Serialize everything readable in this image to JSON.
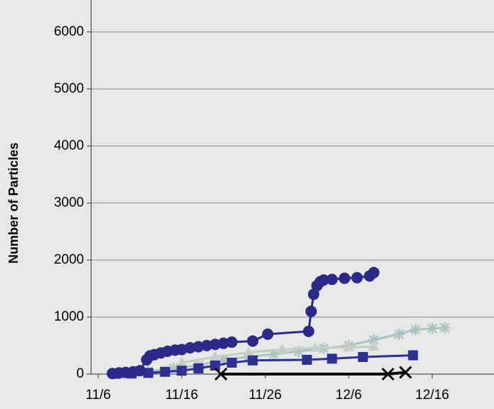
{
  "chart_data": {
    "type": "line",
    "y_label": "Number of Particles",
    "xlim": [
      -0.85,
      47.4
    ],
    "xticks": [
      {
        "value": 0,
        "label": "11/6"
      },
      {
        "value": 10,
        "label": "11/16"
      },
      {
        "value": 20,
        "label": "11/26"
      },
      {
        "value": 30,
        "label": "12/6"
      },
      {
        "value": 40,
        "label": "12/16"
      }
    ],
    "ylim": [
      0,
      6560
    ],
    "yticks": [
      0,
      1000,
      2000,
      3000,
      4000,
      5000,
      6000
    ],
    "grid": true,
    "series": [
      {
        "color": "#a9c3c3",
        "marker": "star",
        "x": [
          3,
          6,
          9,
          12,
          15,
          18,
          21,
          24,
          27,
          30,
          33,
          36,
          38,
          40,
          41.5
        ],
        "values": [
          10,
          50,
          100,
          150,
          250,
          300,
          350,
          400,
          450,
          500,
          600,
          700,
          780,
          800,
          810
        ]
      },
      {
        "color": "#c3cfc0",
        "marker": "triangle",
        "x": [
          10,
          14,
          18,
          22,
          26,
          30,
          33
        ],
        "values": [
          200,
          300,
          380,
          430,
          460,
          470,
          480
        ]
      },
      {
        "color": "#2e3192",
        "marker": "square",
        "x": [
          2,
          4,
          6,
          8,
          10,
          12,
          14,
          16,
          18.5,
          25,
          28,
          31.7,
          37.7
        ],
        "values": [
          5,
          10,
          20,
          40,
          60,
          100,
          150,
          200,
          240,
          250,
          270,
          300,
          330
        ]
      },
      {
        "color": "#2b2a8a",
        "marker": "circle",
        "x": [
          1.7,
          2.5,
          3.3,
          4.2,
          5,
          5.8,
          6.2,
          6.7,
          7.5,
          8.3,
          9.2,
          10,
          11,
          12,
          13,
          14,
          15,
          16,
          18.5,
          20.3,
          25.2,
          25.5,
          25.8,
          26.2,
          26.6,
          27,
          28,
          29.5,
          31,
          32.5,
          33
        ],
        "values": [
          10,
          20,
          30,
          40,
          60,
          250,
          320,
          340,
          370,
          400,
          420,
          430,
          460,
          480,
          500,
          520,
          540,
          560,
          580,
          700,
          750,
          1100,
          1400,
          1550,
          1620,
          1650,
          1660,
          1680,
          1690,
          1720,
          1780
        ]
      },
      {
        "color": "#000000",
        "marker": "x",
        "x": [
          14.7,
          34.7,
          36.8
        ],
        "values": [
          0,
          0,
          30
        ]
      }
    ]
  }
}
